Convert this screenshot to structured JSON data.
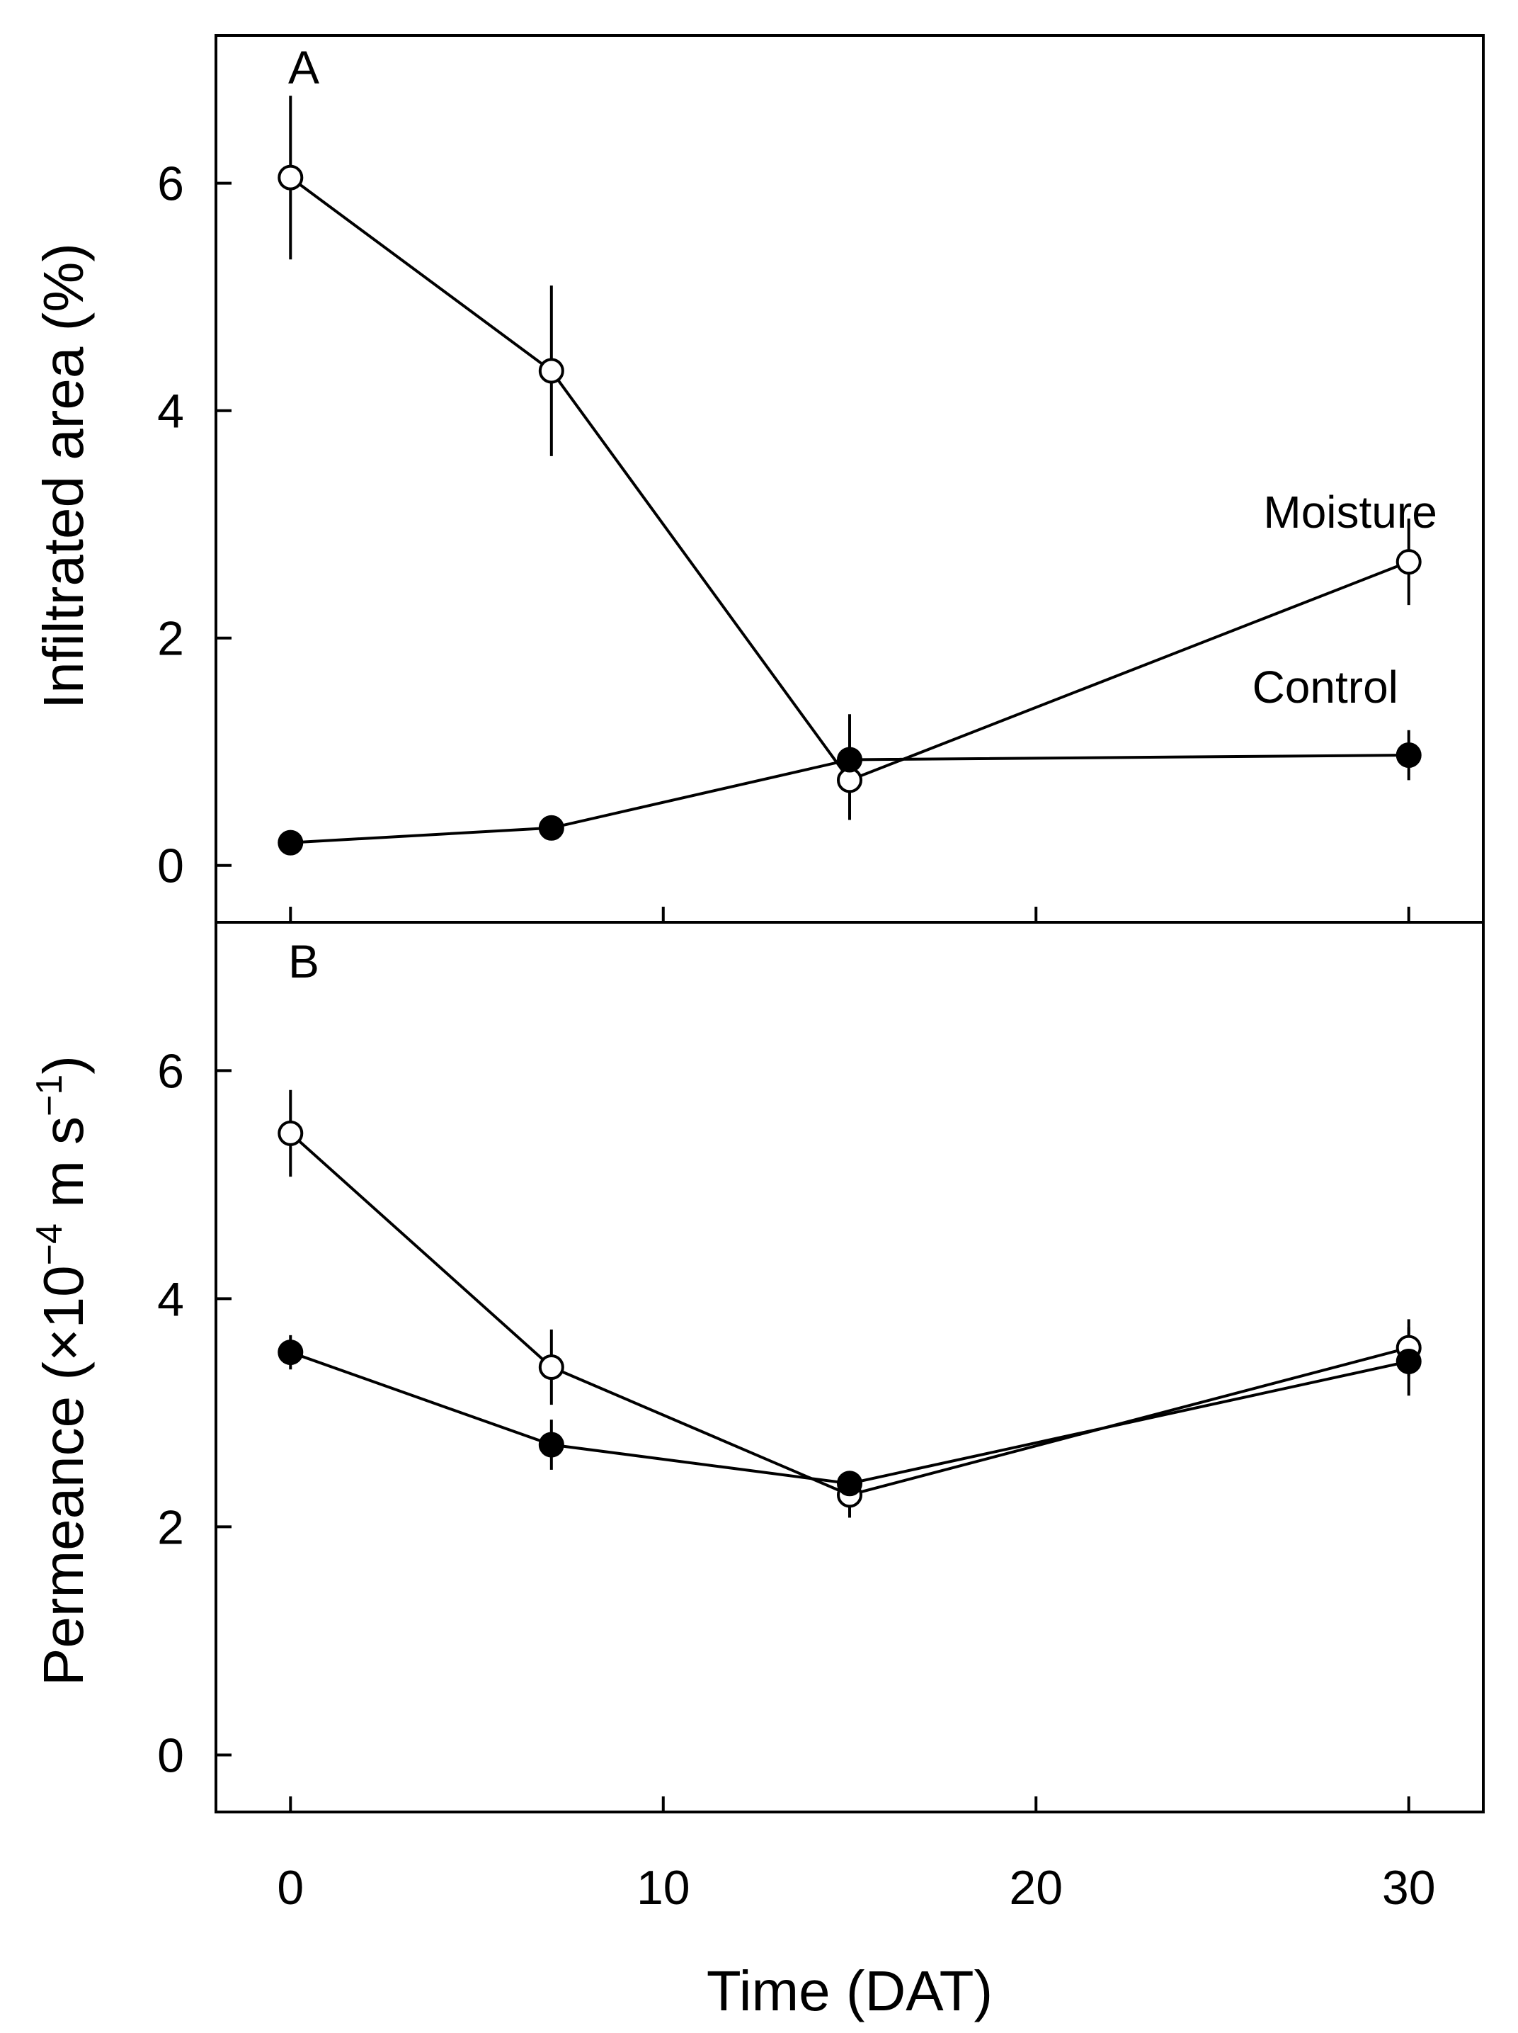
{
  "chart_data": [
    {
      "type": "line",
      "panel": "A",
      "ylabel": "Infiltrated area (%)",
      "ylim": [
        -0.5,
        7.3
      ],
      "yticks": [
        0,
        2,
        4,
        6
      ],
      "xlim": [
        -2,
        32
      ],
      "xticks": [
        0,
        10,
        20,
        30
      ],
      "series": [
        {
          "name": "Moisture",
          "marker": "open",
          "x": [
            0,
            7,
            15,
            30
          ],
          "y": [
            6.05,
            4.35,
            0.75,
            2.67
          ],
          "err": [
            0.72,
            0.75,
            0.35,
            0.38
          ]
        },
        {
          "name": "Control",
          "marker": "filled",
          "x": [
            0,
            7,
            15,
            30
          ],
          "y": [
            0.2,
            0.33,
            0.93,
            0.97
          ],
          "err": [
            0.05,
            0.05,
            0.4,
            0.22
          ]
        }
      ],
      "annotations": [
        {
          "text": "Moisture",
          "x": 26.1,
          "y": 2.97
        },
        {
          "text": "Control",
          "x": 25.8,
          "y": 1.43
        }
      ]
    },
    {
      "type": "line",
      "panel": "B",
      "ylabel_main": "Permeance (×10",
      "ylabel_exp1": "−4",
      "ylabel_mid": " m s",
      "ylabel_exp2": "−1",
      "ylabel_end": ")",
      "xlabel": "Time (DAT)",
      "ylim": [
        -0.5,
        7.3
      ],
      "yticks": [
        0,
        2,
        4,
        6
      ],
      "xlim": [
        -2,
        32
      ],
      "xticks": [
        0,
        10,
        20,
        30
      ],
      "series": [
        {
          "name": "Moisture",
          "marker": "open",
          "x": [
            0,
            7,
            15,
            30
          ],
          "y": [
            5.45,
            3.4,
            2.28,
            3.57
          ],
          "err": [
            0.38,
            0.33,
            0.2,
            0.25
          ]
        },
        {
          "name": "Control",
          "marker": "filled",
          "x": [
            0,
            7,
            15,
            30
          ],
          "y": [
            3.53,
            2.72,
            2.38,
            3.45
          ],
          "err": [
            0.15,
            0.22,
            0.1,
            0.3
          ]
        }
      ]
    }
  ]
}
